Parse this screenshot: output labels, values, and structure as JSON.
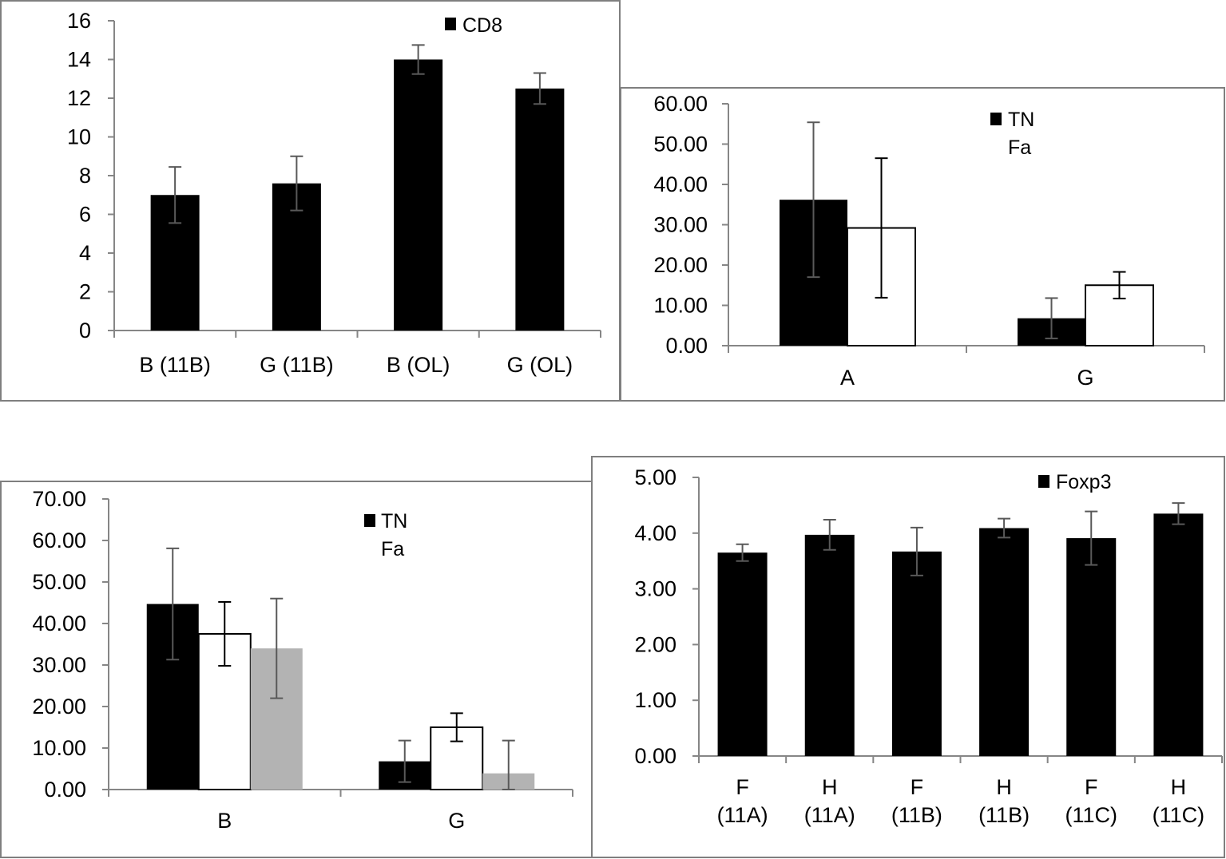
{
  "chart_data": [
    {
      "type": "bar",
      "categories": [
        "B (11B)",
        "G (11B)",
        "B (OL)",
        "G (OL)"
      ],
      "series": [
        {
          "name": "CD8",
          "values": [
            7,
            7.6,
            14,
            12.5
          ],
          "errors": [
            1.45,
            1.4,
            0.75,
            0.8
          ],
          "color": "#000000"
        }
      ],
      "legend": [
        "CD8"
      ],
      "legend_position": "top-right",
      "yticks": [
        "0",
        "2",
        "4",
        "6",
        "8",
        "10",
        "12",
        "14",
        "16"
      ],
      "ylim": [
        0,
        16
      ],
      "title": "",
      "xlabel": "",
      "ylabel": ""
    },
    {
      "type": "bar",
      "categories": [
        "A",
        "G"
      ],
      "series": [
        {
          "name": "TN",
          "values": [
            36.2,
            6.8
          ],
          "errors": [
            19.2,
            5.0
          ],
          "color": "#000000"
        },
        {
          "name": "Fa",
          "values": [
            29.2,
            15.0
          ],
          "errors": [
            17.3,
            3.3
          ],
          "color": "#ffffff"
        }
      ],
      "legend": [
        "TN",
        "Fa"
      ],
      "legend_position": "top-right",
      "yticks": [
        "0.00",
        "10.00",
        "20.00",
        "30.00",
        "40.00",
        "50.00",
        "60.00"
      ],
      "ylim": [
        0,
        60
      ],
      "title": "",
      "xlabel": "",
      "ylabel": ""
    },
    {
      "type": "bar",
      "categories": [
        "B",
        "G"
      ],
      "series": [
        {
          "name": "TN",
          "values": [
            44.7,
            6.8
          ],
          "errors": [
            13.4,
            5.0
          ],
          "color": "#000000"
        },
        {
          "name": "Fa",
          "values": [
            37.5,
            15.0
          ],
          "errors": [
            7.7,
            3.4
          ],
          "color": "#ffffff"
        },
        {
          "name": "",
          "values": [
            34.0,
            3.9
          ],
          "errors": [
            12.0,
            7.9
          ],
          "color": "#b3b3b3"
        }
      ],
      "legend": [
        "TN",
        "Fa"
      ],
      "legend_position": "top-center",
      "yticks": [
        "0.00",
        "10.00",
        "20.00",
        "30.00",
        "40.00",
        "50.00",
        "60.00",
        "70.00"
      ],
      "ylim": [
        0,
        70
      ],
      "title": "",
      "xlabel": "",
      "ylabel": ""
    },
    {
      "type": "bar",
      "categories": [
        "F (11A)",
        "H (11A)",
        "F (11B)",
        "H (11B)",
        "F (11C)",
        "H (11C)"
      ],
      "series": [
        {
          "name": "Foxp3",
          "values": [
            3.65,
            3.97,
            3.67,
            4.09,
            3.91,
            4.35
          ],
          "errors": [
            0.15,
            0.27,
            0.43,
            0.17,
            0.48,
            0.19
          ],
          "color": "#000000"
        }
      ],
      "legend": [
        "Foxp3"
      ],
      "legend_position": "top-right",
      "yticks": [
        "0.00",
        "1.00",
        "2.00",
        "3.00",
        "4.00",
        "5.00"
      ],
      "ylim": [
        0,
        5
      ],
      "title": "",
      "xlabel": "",
      "ylabel": ""
    }
  ]
}
